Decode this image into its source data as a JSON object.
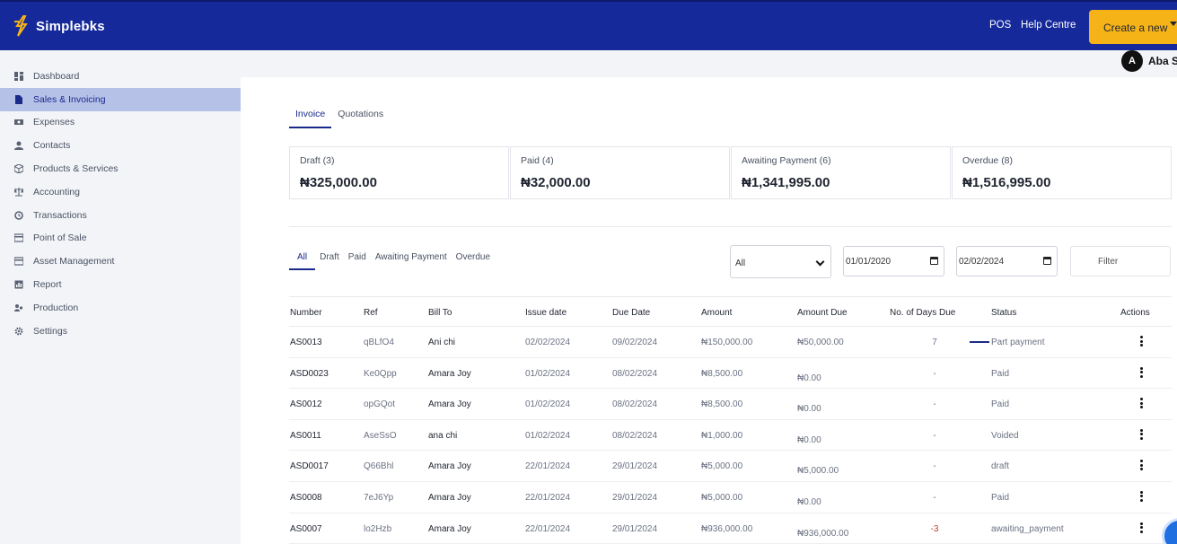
{
  "brand": {
    "name": "Simplebks",
    "accent": "#15299a",
    "cta": "#f6b318"
  },
  "header": {
    "pos": "POS",
    "help": "Help Centre",
    "create": "Create a new"
  },
  "user": {
    "initial": "A",
    "name": "Aba S"
  },
  "sidebar": {
    "items": [
      {
        "label": "Dashboard",
        "icon": "dashboard-icon"
      },
      {
        "label": "Sales & Invoicing",
        "icon": "document-icon",
        "active": true
      },
      {
        "label": "Expenses",
        "icon": "money-icon"
      },
      {
        "label": "Contacts",
        "icon": "person-icon"
      },
      {
        "label": "Products & Services",
        "icon": "box-icon"
      },
      {
        "label": "Accounting",
        "icon": "scale-icon"
      },
      {
        "label": "Transactions",
        "icon": "refresh-icon"
      },
      {
        "label": "Point of Sale",
        "icon": "card-icon"
      },
      {
        "label": "Asset Management",
        "icon": "card-icon"
      },
      {
        "label": "Report",
        "icon": "report-icon"
      },
      {
        "label": "Production",
        "icon": "people-icon"
      },
      {
        "label": "Settings",
        "icon": "gear-icon"
      }
    ]
  },
  "tabs": [
    "Invoice",
    "Quotations"
  ],
  "summary": [
    {
      "label": "Draft (3)",
      "value": "₦325,000.00"
    },
    {
      "label": "Paid (4)",
      "value": "₦32,000.00"
    },
    {
      "label": "Awaiting Payment (6)",
      "value": "₦1,341,995.00"
    },
    {
      "label": "Overdue (8)",
      "value": "₦1,516,995.00"
    }
  ],
  "filters": {
    "tabs": [
      "All",
      "Draft",
      "Paid",
      "Awaiting Payment",
      "Overdue"
    ],
    "select": "All",
    "date_from": "01/01/2020",
    "date_to": "02/02/2024",
    "filter_button": "Filter"
  },
  "table": {
    "headers": [
      "Number",
      "Ref",
      "Bill To",
      "Issue date",
      "Due Date",
      "Amount",
      "Amount Due",
      "No. of Days Due",
      "Status",
      "Actions"
    ],
    "rows": [
      [
        "AS0013",
        "qBLfO4",
        "Ani chi",
        "02/02/2024",
        "09/02/2024",
        "₦150,000.00",
        "₦50,000.00",
        "7",
        "Part payment"
      ],
      [
        "ASD0023",
        "Ke0Qpp",
        "Amara Joy",
        "01/02/2024",
        "08/02/2024",
        "₦8,500.00",
        "₦0.00",
        "-",
        "Paid"
      ],
      [
        "AS0012",
        "opGQot",
        "Amara Joy",
        "01/02/2024",
        "08/02/2024",
        "₦8,500.00",
        "₦0.00",
        "-",
        "Paid"
      ],
      [
        "AS0011",
        "AseSsO",
        "ana chi",
        "01/02/2024",
        "08/02/2024",
        "₦1,000.00",
        "₦0.00",
        "-",
        "Voided"
      ],
      [
        "ASD0017",
        "Q66Bhl",
        "Amara Joy",
        "22/01/2024",
        "29/01/2024",
        "₦5,000.00",
        "₦5,000.00",
        "-",
        "draft"
      ],
      [
        "AS0008",
        "7eJ6Yp",
        "Amara Joy",
        "22/01/2024",
        "29/01/2024",
        "₦5,000.00",
        "₦0.00",
        "-",
        "Paid"
      ],
      [
        "AS0007",
        "lo2Hzb",
        "Amara Joy",
        "22/01/2024",
        "29/01/2024",
        "₦936,000.00",
        "₦936,000.00",
        "-3",
        "awaiting_payment"
      ]
    ]
  }
}
